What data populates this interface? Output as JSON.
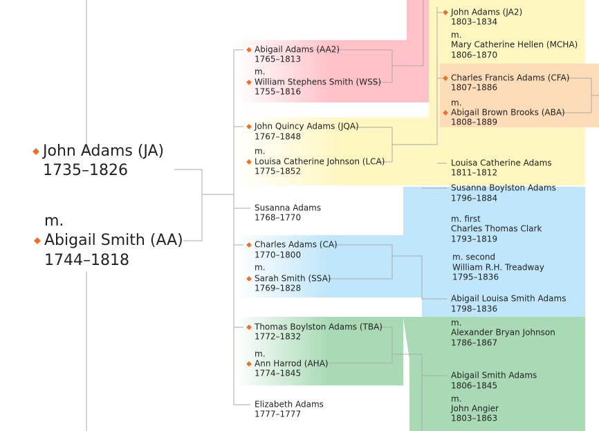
{
  "root": {
    "name": "John Adams (JA)",
    "years": "1735–1826",
    "spouses": [
      {
        "label": "m.",
        "name": "Abigail Smith (AA)",
        "years": "1744–1818"
      }
    ]
  },
  "children": [
    {
      "name": "Abigail Adams (AA2)",
      "years": "1765–1813",
      "spouses": [
        {
          "label": "m.",
          "name": "William Stephens Smith (WSS)",
          "years": "1755–1816"
        }
      ]
    },
    {
      "name": "John Quincy Adams (JQA)",
      "years": "1767–1848",
      "spouses": [
        {
          "label": "m.",
          "name": "Louisa Catherine Johnson (LCA)",
          "years": "1775–1852"
        }
      ]
    },
    {
      "name": "Susanna Adams",
      "years": "1768–1770"
    },
    {
      "name": "Charles Adams (CA)",
      "years": "1770–1800",
      "spouses": [
        {
          "label": "m.",
          "name": "Sarah Smith (SSA)",
          "years": "1769–1828"
        }
      ]
    },
    {
      "name": "Thomas Boylston Adams (TBA)",
      "years": "1772–1832",
      "spouses": [
        {
          "label": "m.",
          "name": "Ann Harrod (AHA)",
          "years": "1774–1845"
        }
      ]
    },
    {
      "name": "Elizabeth Adams",
      "years": "1777–1777"
    }
  ],
  "grandchildren": [
    {
      "name": "John Adams (JA2)",
      "years": "1803–1834",
      "spouses": [
        {
          "label": "m.",
          "name": "Mary Catherine Hellen (MCHA)",
          "years": "1806–1870"
        }
      ]
    },
    {
      "name": "Charles Francis Adams (CFA)",
      "years": "1807–1886",
      "spouses": [
        {
          "label": "m.",
          "name": "Abigail Brown Brooks (ABA)",
          "years": "1808–1889"
        }
      ]
    },
    {
      "name": "Louisa Catherine Adams",
      "years": "1811–1812"
    },
    {
      "name": "Susanna Boylston Adams",
      "years": "1796–1884",
      "spouses": [
        {
          "label": "m. first",
          "name": "Charles Thomas Clark",
          "years": "1793–1819"
        },
        {
          "label": "m. second",
          "name": "William R.H. Treadway",
          "years": "1795–1836"
        }
      ]
    },
    {
      "name": "Abigail Louisa Smith Adams",
      "years": "1798–1836",
      "spouses": [
        {
          "label": "m.",
          "name": "Alexander Bryan Johnson",
          "years": "1786–1867"
        }
      ]
    },
    {
      "name": "Abigail Smith Adams",
      "years": "1806–1845",
      "spouses": [
        {
          "label": "m.",
          "name": "John Angier",
          "years": "1803–1863"
        }
      ]
    }
  ]
}
